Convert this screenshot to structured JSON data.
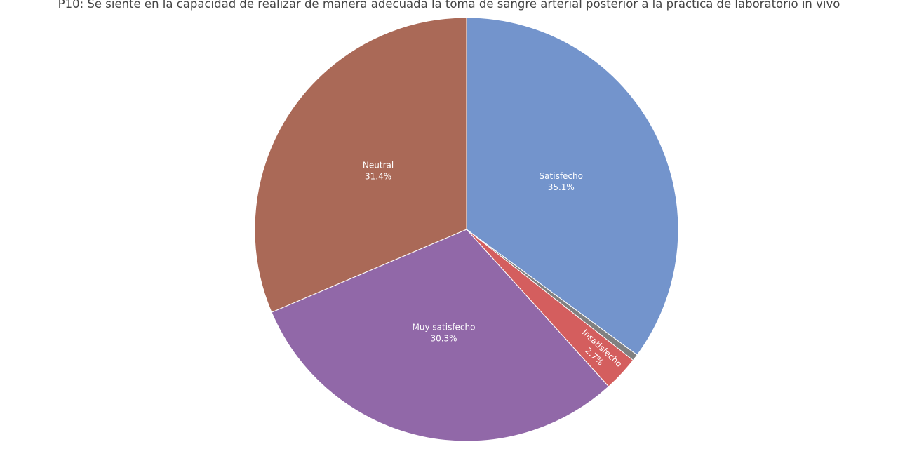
{
  "chart_data": {
    "type": "pie",
    "title": "P10: Se siente en la capacidad de realizar de manera adecuada la toma de sangre arterial posterior a la práctica de laboratorio in vivo",
    "start_angle_deg": 0,
    "direction": "clockwise",
    "slices": [
      {
        "label": "Satisfecho",
        "value": 35.1,
        "pct_text": "35.1%",
        "color": "#7394cc",
        "show_label": true
      },
      {
        "label": "",
        "value": 0.5,
        "pct_text": "",
        "color": "#808080",
        "show_label": false
      },
      {
        "label": "Insatisfecho",
        "value": 2.7,
        "pct_text": "2.7%",
        "color": "#d45e5e",
        "show_label": true,
        "rotated": true
      },
      {
        "label": "Muy satisfecho",
        "value": 30.3,
        "pct_text": "30.3%",
        "color": "#9168a8",
        "show_label": true
      },
      {
        "label": "Neutral",
        "value": 31.4,
        "pct_text": "31.4%",
        "color": "#aa6957",
        "show_label": true
      }
    ]
  }
}
